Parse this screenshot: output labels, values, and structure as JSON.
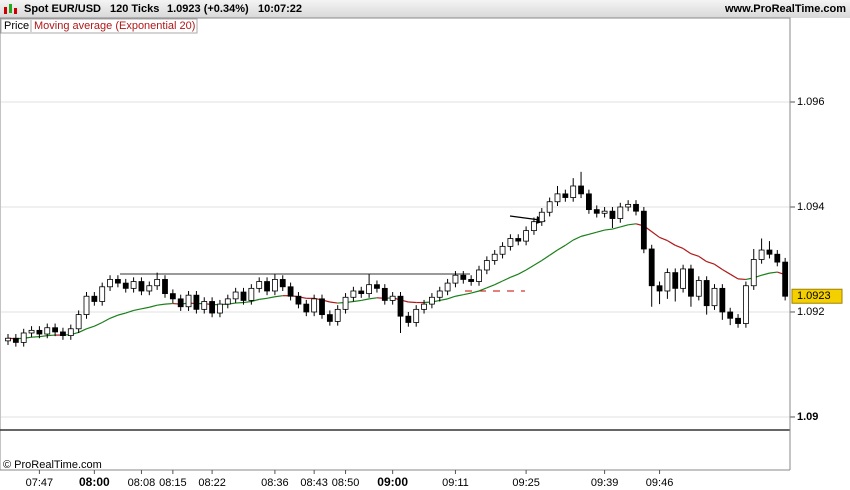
{
  "chart_data": {
    "type": "candlestick",
    "title": "Spot EUR/USD",
    "interval": "120 Ticks",
    "last_change": "1.0923 (+0.34%)",
    "time": "10:07:22",
    "source": "www.ProRealTime.com",
    "copyright": "© ProRealTime.com",
    "price_legend": "Price",
    "categories": [
      null,
      null,
      null,
      null,
      "07:47",
      null,
      null,
      null,
      null,
      null,
      null,
      "08:00",
      null,
      null,
      null,
      null,
      null,
      "08:08",
      null,
      null,
      null,
      "08:15",
      null,
      null,
      null,
      null,
      "08:22",
      null,
      null,
      null,
      null,
      null,
      null,
      null,
      "08:36",
      null,
      null,
      null,
      null,
      "08:43",
      null,
      null,
      null,
      "08:50",
      null,
      null,
      null,
      null,
      null,
      "09:00",
      null,
      null,
      null,
      null,
      null,
      null,
      null,
      "09:11",
      null,
      null,
      null,
      null,
      null,
      null,
      null,
      null,
      "09:25",
      null,
      null,
      null,
      null,
      null,
      null,
      null,
      null,
      null,
      "09:39",
      null,
      null,
      null,
      null,
      null,
      null,
      "09:46",
      null,
      null,
      null,
      null,
      null,
      null,
      null,
      null,
      null,
      null,
      null,
      null,
      null,
      null,
      null,
      null
    ],
    "open": [
      1.09145,
      1.0915,
      1.09142,
      1.0916,
      1.09165,
      1.09158,
      1.0917,
      1.09162,
      1.09155,
      1.09168,
      1.09195,
      1.0923,
      1.0922,
      1.09248,
      1.09262,
      1.09255,
      1.09245,
      1.09258,
      1.0924,
      1.0925,
      1.09262,
      1.09235,
      1.09225,
      1.0921,
      1.09232,
      1.09205,
      1.0922,
      1.09198,
      1.09215,
      1.09225,
      1.09238,
      1.09222,
      1.09245,
      1.09258,
      1.0924,
      1.09262,
      1.09248,
      1.0923,
      1.09215,
      1.092,
      1.09225,
      1.09195,
      1.09182,
      1.09205,
      1.09228,
      1.0924,
      1.09235,
      1.09252,
      1.09245,
      1.09222,
      1.0923,
      1.09192,
      1.0918,
      1.09205,
      1.09215,
      1.09228,
      1.0924,
      1.09255,
      1.0927,
      1.09262,
      1.09258,
      1.0928,
      1.09298,
      1.0931,
      1.09325,
      1.0934,
      1.09335,
      1.09355,
      1.09372,
      1.0939,
      1.0941,
      1.09425,
      1.09418,
      1.0944,
      1.09425,
      1.09395,
      1.09388,
      1.09392,
      1.09378,
      1.094,
      1.09405,
      1.09392,
      1.0932,
      1.0925,
      1.0924,
      1.09275,
      1.09245,
      1.09282,
      1.0923,
      1.0926,
      1.09212,
      1.09245,
      1.092,
      1.09188,
      1.09178,
      1.0925,
      1.093,
      1.09318,
      1.0931,
      1.09295
    ],
    "high": [
      1.09158,
      1.09158,
      1.09168,
      1.09173,
      1.09173,
      1.09178,
      1.09178,
      1.0917,
      1.09176,
      1.09203,
      1.09238,
      1.09238,
      1.09256,
      1.0927,
      1.0927,
      1.09263,
      1.09266,
      1.09266,
      1.09258,
      1.09275,
      1.0927,
      1.09243,
      1.09233,
      1.0924,
      1.0924,
      1.09228,
      1.09228,
      1.09223,
      1.09233,
      1.09246,
      1.09246,
      1.09253,
      1.09266,
      1.09266,
      1.09272,
      1.0927,
      1.09256,
      1.09238,
      1.09223,
      1.09233,
      1.09233,
      1.09203,
      1.09213,
      1.09236,
      1.09248,
      1.09248,
      1.09272,
      1.0926,
      1.09253,
      1.09238,
      1.09238,
      1.092,
      1.09213,
      1.09223,
      1.09236,
      1.09248,
      1.09263,
      1.09278,
      1.09278,
      1.0927,
      1.09288,
      1.09306,
      1.09318,
      1.09333,
      1.09348,
      1.09348,
      1.09363,
      1.0938,
      1.09398,
      1.09418,
      1.0944,
      1.09433,
      1.09455,
      1.09467,
      1.09433,
      1.09403,
      1.094,
      1.094,
      1.09408,
      1.09413,
      1.09413,
      1.094,
      1.09328,
      1.09258,
      1.09283,
      1.09283,
      1.0929,
      1.0929,
      1.09268,
      1.09268,
      1.09253,
      1.09253,
      1.09208,
      1.09196,
      1.09258,
      1.0932,
      1.0934,
      1.09335,
      1.09318,
      1.09303
    ],
    "low": [
      1.09137,
      1.09134,
      1.09134,
      1.09152,
      1.0915,
      1.0915,
      1.09154,
      1.09147,
      1.09147,
      1.0916,
      1.09187,
      1.09212,
      1.09212,
      1.0924,
      1.09247,
      1.09237,
      1.09237,
      1.09232,
      1.09232,
      1.09242,
      1.09227,
      1.09217,
      1.09202,
      1.09202,
      1.09197,
      1.09197,
      1.0919,
      1.0919,
      1.09207,
      1.09217,
      1.09214,
      1.09214,
      1.09237,
      1.09232,
      1.09232,
      1.0924,
      1.09222,
      1.09207,
      1.09192,
      1.09192,
      1.09187,
      1.09174,
      1.09174,
      1.09197,
      1.0922,
      1.09227,
      1.09227,
      1.09237,
      1.09214,
      1.09214,
      1.0916,
      1.09172,
      1.09172,
      1.09197,
      1.09207,
      1.0922,
      1.09232,
      1.09247,
      1.09254,
      1.0925,
      1.0925,
      1.09272,
      1.0929,
      1.09302,
      1.09317,
      1.09327,
      1.09327,
      1.09347,
      1.09364,
      1.09382,
      1.09402,
      1.0941,
      1.0941,
      1.09417,
      1.09387,
      1.0938,
      1.0938,
      1.0936,
      1.0937,
      1.09392,
      1.09384,
      1.09312,
      1.0921,
      1.09215,
      1.09225,
      1.0922,
      1.09237,
      1.0921,
      1.09222,
      1.09195,
      1.09204,
      1.09185,
      1.09175,
      1.0917,
      1.0917,
      1.09242,
      1.09292,
      1.09302,
      1.09287,
      1.09222
    ],
    "close": [
      1.0915,
      1.09142,
      1.0916,
      1.09165,
      1.09158,
      1.0917,
      1.09162,
      1.09155,
      1.09168,
      1.09195,
      1.0923,
      1.0922,
      1.09248,
      1.09262,
      1.09255,
      1.09245,
      1.09258,
      1.0924,
      1.0925,
      1.09262,
      1.09235,
      1.09225,
      1.0921,
      1.09232,
      1.09205,
      1.0922,
      1.09198,
      1.09215,
      1.09225,
      1.09238,
      1.09222,
      1.09245,
      1.09258,
      1.0924,
      1.09262,
      1.09248,
      1.0923,
      1.09215,
      1.092,
      1.09225,
      1.09195,
      1.09182,
      1.09205,
      1.09228,
      1.0924,
      1.09235,
      1.09252,
      1.09245,
      1.09222,
      1.0923,
      1.09192,
      1.0918,
      1.09205,
      1.09215,
      1.09228,
      1.0924,
      1.09255,
      1.0927,
      1.09262,
      1.09258,
      1.0928,
      1.09298,
      1.0931,
      1.09325,
      1.0934,
      1.09335,
      1.09355,
      1.09372,
      1.0939,
      1.0941,
      1.09425,
      1.09418,
      1.0944,
      1.09425,
      1.09395,
      1.09388,
      1.09392,
      1.09378,
      1.094,
      1.09405,
      1.09392,
      1.0932,
      1.0925,
      1.0924,
      1.09275,
      1.09245,
      1.09282,
      1.0923,
      1.0926,
      1.09212,
      1.09245,
      1.092,
      1.09188,
      1.09178,
      1.0925,
      1.093,
      1.09318,
      1.0931,
      1.09295,
      1.0923
    ],
    "up_color": "#ffffff",
    "down_color": "#000000",
    "ema": {
      "name": "Moving average (Exponential 20)",
      "color_above": "#1a7f1a",
      "color_below": "#b01818",
      "values": [
        1.0915,
        1.09149,
        1.0915,
        1.09152,
        1.09153,
        1.09155,
        1.09156,
        1.09156,
        1.09157,
        1.09161,
        1.09168,
        1.09173,
        1.0918,
        1.09188,
        1.09194,
        1.09198,
        1.09203,
        1.09206,
        1.09209,
        1.09213,
        1.09215,
        1.09216,
        1.09215,
        1.09217,
        1.09216,
        1.09216,
        1.09214,
        1.09214,
        1.09215,
        1.09217,
        1.09218,
        1.0922,
        1.09224,
        1.09226,
        1.09229,
        1.09231,
        1.09231,
        1.09229,
        1.09226,
        1.09226,
        1.09223,
        1.09219,
        1.09217,
        1.09218,
        1.0922,
        1.09222,
        1.09225,
        1.09227,
        1.09226,
        1.09227,
        1.09223,
        1.09219,
        1.09218,
        1.09218,
        1.09219,
        1.09222,
        1.09225,
        1.0923,
        1.09233,
        1.09236,
        1.0924,
        1.09246,
        1.09252,
        1.09259,
        1.09266,
        1.09272,
        1.0928,
        1.09289,
        1.09298,
        1.09308,
        1.09318,
        1.09327,
        1.09337,
        1.09344,
        1.09348,
        1.09352,
        1.09356,
        1.09358,
        1.09362,
        1.09366,
        1.09368,
        1.09364,
        1.09353,
        1.09342,
        1.09336,
        1.09327,
        1.09321,
        1.09311,
        1.09306,
        1.09296,
        1.09291,
        1.09281,
        1.09272,
        1.09263,
        1.09262,
        1.09265,
        1.0927,
        1.09274,
        1.09276,
        1.09271
      ]
    },
    "ylim": [
      1.08899,
      1.0976
    ],
    "yticks": [
      1.09,
      1.092,
      1.094,
      1.096
    ],
    "grid": true
  }
}
